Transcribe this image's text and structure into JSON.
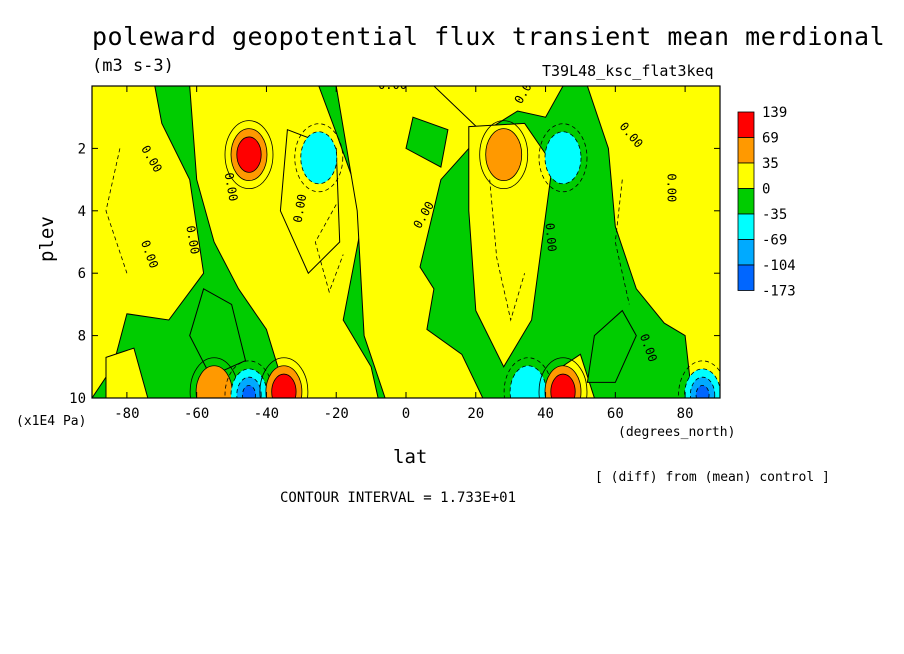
{
  "header": {
    "title": "poleward geopotential flux transient mean merdional",
    "units": "(m3 s-3)",
    "run_name": "T39L48_ksc_flat3keq"
  },
  "footer": {
    "diff_note": "[ (diff) from (mean) control ]",
    "contour_interval": "CONTOUR INTERVAL = 1.733E+01"
  },
  "chart_data": {
    "type": "heatmap",
    "title": "poleward geopotential flux transient mean merdional",
    "xlabel": "lat",
    "x_unit": "(degrees_north)",
    "ylabel": "plev",
    "y_unit": "(x1E4 Pa)",
    "xlim": [
      -90,
      90
    ],
    "ylim": [
      0,
      10
    ],
    "y_reversed": true,
    "x_ticks": [
      -80,
      -60,
      -40,
      -20,
      0,
      20,
      40,
      60,
      80
    ],
    "x_tick_labels": [
      "-80",
      "-60",
      "-40",
      "-20",
      "0",
      "20",
      "40",
      "60",
      "80"
    ],
    "y_ticks": [
      2,
      4,
      6,
      8,
      10
    ],
    "y_tick_labels": [
      "2",
      "4",
      "6",
      "8",
      "10"
    ],
    "contour_label": "0.00",
    "colorbar": {
      "labels": [
        "139",
        "69",
        "35",
        "0",
        "-35",
        "-69",
        "-104",
        "-173"
      ],
      "colors": [
        "#ff0000",
        "#ff9900",
        "#ffff00",
        "#00cc00",
        "#00ffff",
        "#00aaff",
        "#0066ff"
      ]
    },
    "field_colors": {
      "pos_low": "#ffff00",
      "neg_low": "#00cc00",
      "pos_mid": "#ff9900",
      "pos_high": "#ff0000",
      "neg_mid": "#00ffff",
      "neg_high": "#00aaff",
      "neg_max": "#0066ff"
    },
    "features": [
      {
        "lat": -45,
        "plev": 2.2,
        "value": 139,
        "sign": "positive"
      },
      {
        "lat": -25,
        "plev": 2.3,
        "value": -69,
        "sign": "negative"
      },
      {
        "lat": 28,
        "plev": 2.2,
        "value": 69,
        "sign": "positive"
      },
      {
        "lat": 45,
        "plev": 2.3,
        "value": -69,
        "sign": "negative"
      },
      {
        "lat": -55,
        "plev": 9.8,
        "value": 69,
        "sign": "positive"
      },
      {
        "lat": -45,
        "plev": 9.9,
        "value": -104,
        "sign": "negative"
      },
      {
        "lat": -35,
        "plev": 9.8,
        "value": 139,
        "sign": "positive"
      },
      {
        "lat": 35,
        "plev": 9.8,
        "value": -69,
        "sign": "negative"
      },
      {
        "lat": 45,
        "plev": 9.8,
        "value": 139,
        "sign": "positive"
      },
      {
        "lat": 85,
        "plev": 9.9,
        "value": -104,
        "sign": "negative"
      }
    ]
  }
}
